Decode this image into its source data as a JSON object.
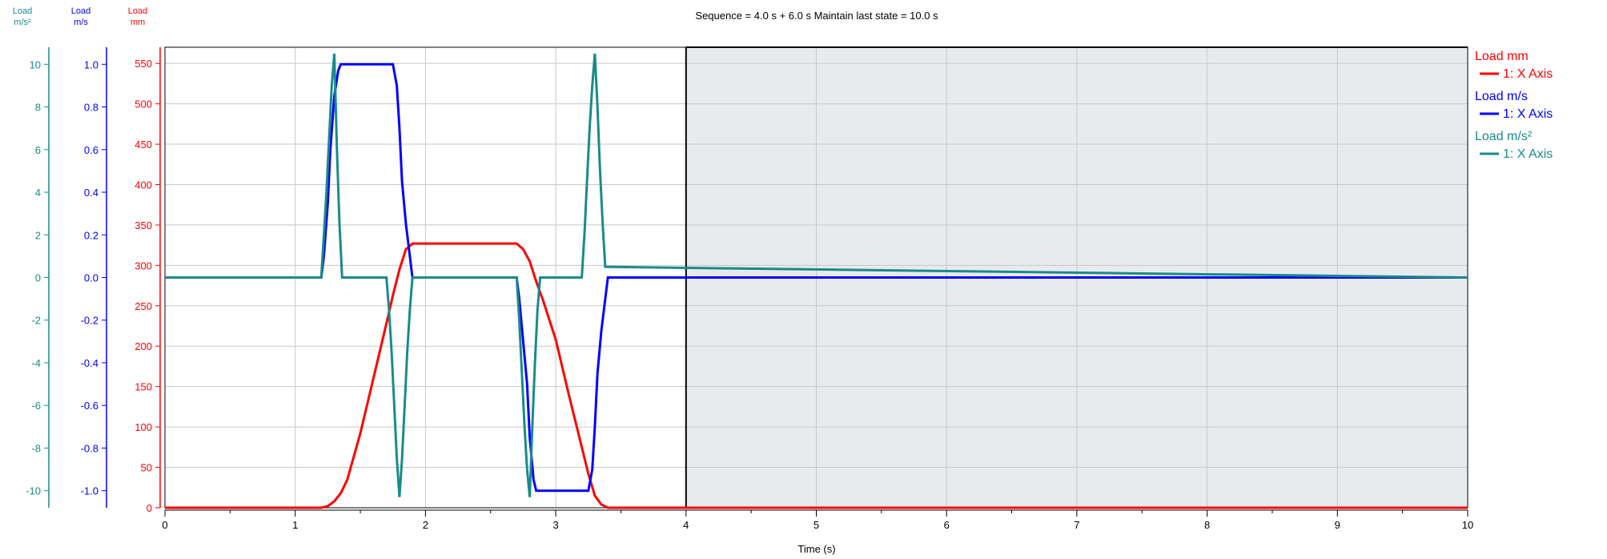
{
  "chart_data": {
    "type": "line",
    "title": "Sequence = 4.0 s + 6.0 s Maintain last state = 10.0 s",
    "xlabel": "Time  (s)",
    "xlim": [
      0,
      10
    ],
    "x_ticks": [
      "0",
      "1",
      "2",
      "3",
      "4",
      "5",
      "6",
      "7",
      "8",
      "9",
      "10"
    ],
    "grid": true,
    "shaded_region": {
      "x_start": 4,
      "x_end": 10,
      "color": "#e8ebee"
    },
    "axes": [
      {
        "id": "mm",
        "header": [
          "Load",
          "mm"
        ],
        "color": "#ff0000",
        "ylim": [
          0,
          570
        ],
        "ticks": [
          "0",
          "50",
          "100",
          "150",
          "200",
          "250",
          "300",
          "350",
          "400",
          "450",
          "500",
          "550"
        ]
      },
      {
        "id": "ms",
        "header": [
          "Load",
          "m/s"
        ],
        "color": "#0000ff",
        "ylim": [
          -1.08,
          1.08
        ],
        "ticks": [
          "-1.0",
          "-0.8",
          "-0.6",
          "-0.4",
          "-0.2",
          "0.0",
          "0.2",
          "0.4",
          "0.6",
          "0.8",
          "1.0"
        ]
      },
      {
        "id": "ms2",
        "header": [
          "Load",
          "m/s²"
        ],
        "color": "#1a8a8a",
        "ylim": [
          -10.8,
          10.8
        ],
        "ticks": [
          "-10",
          "-8",
          "-6",
          "-4",
          "-2",
          "0",
          "2",
          "4",
          "6",
          "8",
          "10"
        ]
      }
    ],
    "legend_position": "right",
    "legend": [
      {
        "group": "Load mm",
        "entry": "1: X Axis",
        "color": "#ff0000"
      },
      {
        "group": "Load m/s",
        "entry": "1: X Axis",
        "color": "#0000ff"
      },
      {
        "group": "Load m/s²",
        "entry": "1: X Axis",
        "color": "#1a8a8a"
      }
    ],
    "series": [
      {
        "name": "Load mm",
        "axis": "mm",
        "color": "#ff0000",
        "x": [
          0,
          1.2,
          1.25,
          1.3,
          1.35,
          1.4,
          1.5,
          1.6,
          1.7,
          1.75,
          1.8,
          1.85,
          1.9,
          2.7,
          2.75,
          2.8,
          2.85,
          2.9,
          3.0,
          3.1,
          3.2,
          3.25,
          3.3,
          3.35,
          3.4,
          10
        ],
        "y": [
          0,
          0,
          2,
          8,
          18,
          35,
          92,
          160,
          228,
          263,
          295,
          320,
          327,
          327,
          320,
          305,
          280,
          258,
          208,
          140,
          75,
          42,
          15,
          4,
          0,
          0
        ]
      },
      {
        "name": "Load m/s",
        "axis": "ms",
        "color": "#0000ff",
        "x": [
          0,
          1.2,
          1.22,
          1.25,
          1.27,
          1.3,
          1.33,
          1.35,
          1.75,
          1.78,
          1.8,
          1.82,
          1.85,
          1.9,
          2.7,
          2.72,
          2.75,
          2.78,
          2.8,
          2.83,
          2.85,
          3.25,
          3.28,
          3.3,
          3.32,
          3.35,
          3.4,
          10
        ],
        "y": [
          0,
          0,
          0.1,
          0.35,
          0.6,
          0.85,
          0.97,
          1.0,
          1.0,
          0.9,
          0.7,
          0.45,
          0.25,
          0,
          0,
          -0.1,
          -0.3,
          -0.5,
          -0.75,
          -0.95,
          -1.0,
          -1.0,
          -0.9,
          -0.7,
          -0.45,
          -0.25,
          0,
          0
        ]
      },
      {
        "name": "Load m/s²",
        "axis": "ms2",
        "color": "#1a8a8a",
        "x": [
          0,
          1.2,
          1.22,
          1.24,
          1.26,
          1.28,
          1.3,
          1.32,
          1.34,
          1.36,
          1.7,
          1.72,
          1.74,
          1.76,
          1.78,
          1.8,
          1.82,
          1.84,
          1.86,
          1.88,
          1.9,
          2.7,
          2.72,
          2.74,
          2.76,
          2.78,
          2.8,
          2.82,
          2.84,
          2.86,
          2.88,
          3.2,
          3.22,
          3.24,
          3.26,
          3.28,
          3.3,
          3.32,
          3.34,
          3.36,
          3.38,
          10
        ],
        "y": [
          0,
          0,
          2,
          4,
          6.5,
          9,
          10.5,
          6,
          2.5,
          0,
          0,
          -1.5,
          -3.5,
          -6,
          -8.5,
          -10.3,
          -8.5,
          -6,
          -3.5,
          -1.5,
          0,
          0,
          -2,
          -4.5,
          -7,
          -9,
          -10.3,
          -7,
          -4,
          -1.5,
          0,
          0,
          2,
          4.5,
          7,
          9,
          10.5,
          8,
          5,
          2.5,
          0.5,
          0
        ]
      }
    ]
  }
}
